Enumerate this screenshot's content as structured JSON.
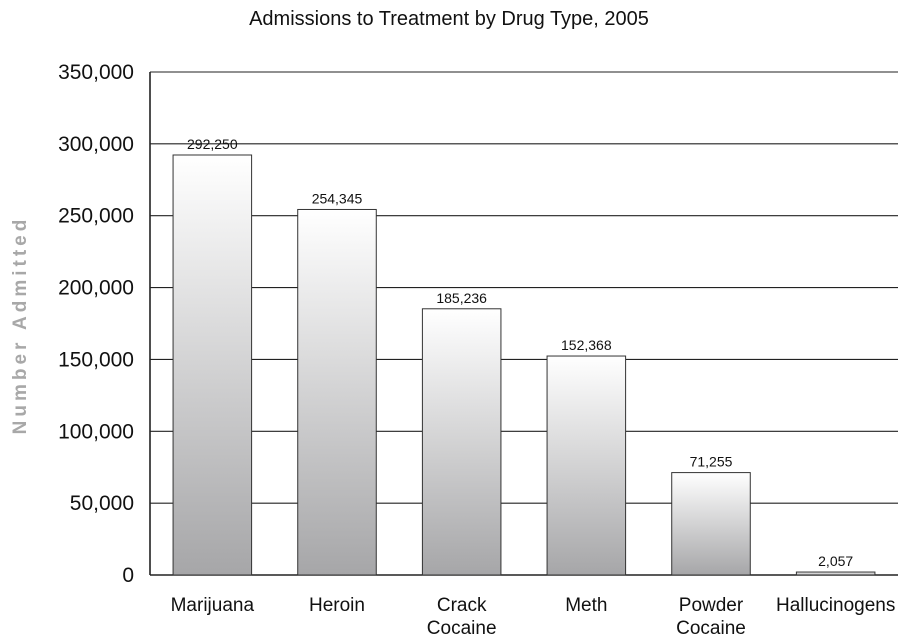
{
  "chart_data": {
    "type": "bar",
    "title": "Admissions to Treatment by Drug Type, 2005",
    "xlabel": "",
    "ylabel": "Number Admitted",
    "ylim": [
      0,
      350000
    ],
    "yticks": [
      0,
      50000,
      100000,
      150000,
      200000,
      250000,
      300000,
      350000
    ],
    "ytick_labels": [
      "0",
      "50,000",
      "100,000",
      "150,000",
      "200,000",
      "250,000",
      "300,000",
      "350,000"
    ],
    "grid": true,
    "categories": [
      [
        "Marijuana"
      ],
      [
        "Heroin"
      ],
      [
        "Crack",
        "Cocaine"
      ],
      [
        "Meth"
      ],
      [
        "Powder",
        "Cocaine"
      ],
      [
        "Hallucinogens"
      ]
    ],
    "values": [
      292250,
      254345,
      185236,
      152368,
      71255,
      2057
    ],
    "value_labels": [
      "292,250",
      "254,345",
      "185,236",
      "152,368",
      "71,255",
      "2,057"
    ],
    "colors": {
      "bar_top": "#ffffff",
      "bar_bottom": "#a6a6a8",
      "bar_stroke": "#333333",
      "grid": "#222222"
    }
  }
}
